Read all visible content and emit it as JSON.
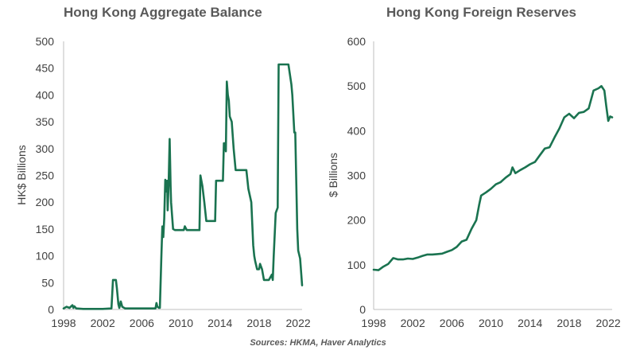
{
  "colors": {
    "line": "#1a7350",
    "axis": "#bfbfbf",
    "text": "#404040",
    "title": "#595959"
  },
  "source": "Sources: HKMA, Haver Analytics",
  "chart_data": [
    {
      "type": "line",
      "title": "Hong Kong Aggregate Balance",
      "ylabel": "HK$ Billions",
      "xlabel": "",
      "xlim": [
        1998,
        2022.4
      ],
      "ylim": [
        0,
        500
      ],
      "x_ticks": [
        "1998",
        "2002",
        "2006",
        "2010",
        "2014",
        "2018",
        "2022"
      ],
      "y_ticks": [
        "0",
        "50",
        "100",
        "150",
        "200",
        "250",
        "300",
        "350",
        "400",
        "450",
        "500"
      ],
      "grid": false,
      "legend": "none",
      "series": [
        {
          "x": [
            1998.0,
            1998.3,
            1998.6,
            1998.9,
            1999.0,
            1999.1,
            1999.3,
            2000.0,
            2001.0,
            2002.0,
            2002.9,
            2003.05,
            2003.1,
            2003.35,
            2003.45,
            2003.6,
            2003.7,
            2003.85,
            2004.0,
            2004.3,
            2005.0,
            2006.0,
            2007.0,
            2007.4,
            2007.5,
            2007.6,
            2007.75,
            2007.85,
            2008.0,
            2008.1,
            2008.2,
            2008.3,
            2008.4,
            2008.5,
            2008.6,
            2008.65,
            2008.75,
            2008.85,
            2008.95,
            2009.0,
            2009.2,
            2009.4,
            2009.6,
            2010.0,
            2010.3,
            2010.4,
            2010.6,
            2011.0,
            2011.5,
            2011.9,
            2012.0,
            2012.2,
            2012.4,
            2012.6,
            2013.0,
            2013.3,
            2013.5,
            2013.6,
            2014.0,
            2014.3,
            2014.4,
            2014.5,
            2014.6,
            2014.7,
            2014.8,
            2014.9,
            2015.0,
            2015.2,
            2015.4,
            2015.6,
            2016.0,
            2016.5,
            2016.7,
            2016.9,
            2017.2,
            2017.4,
            2017.5,
            2017.6,
            2017.8,
            2018.0,
            2018.1,
            2018.3,
            2018.5,
            2019.0,
            2019.3,
            2019.4,
            2019.5,
            2019.7,
            2019.9,
            2020.0,
            2020.1,
            2020.2,
            2020.3,
            2020.5,
            2021.0,
            2021.3,
            2021.4,
            2021.6,
            2021.7,
            2021.9,
            2022.0,
            2022.2,
            2022.4
          ],
          "y": [
            2,
            5,
            3,
            8,
            3,
            6,
            2,
            1,
            1,
            1,
            2,
            55,
            55,
            55,
            40,
            10,
            3,
            15,
            5,
            2,
            2,
            2,
            2,
            2,
            12,
            5,
            3,
            3,
            100,
            155,
            135,
            170,
            242,
            220,
            240,
            185,
            240,
            318,
            230,
            200,
            150,
            148,
            148,
            148,
            148,
            155,
            148,
            148,
            148,
            148,
            250,
            230,
            200,
            165,
            165,
            165,
            165,
            240,
            240,
            240,
            310,
            310,
            295,
            425,
            400,
            390,
            360,
            350,
            300,
            260,
            260,
            260,
            260,
            225,
            200,
            120,
            100,
            90,
            75,
            75,
            85,
            75,
            55,
            55,
            65,
            55,
            100,
            180,
            190,
            457,
            457,
            457,
            457,
            457,
            457,
            420,
            400,
            330,
            330,
            150,
            110,
            95,
            45
          ]
        }
      ]
    },
    {
      "type": "line",
      "title": "Hong Kong Foreign Reserves",
      "ylabel": "$ Billions",
      "xlabel": "",
      "xlim": [
        1998,
        2022.4
      ],
      "ylim": [
        0,
        600
      ],
      "x_ticks": [
        "1998",
        "2002",
        "2006",
        "2010",
        "2014",
        "2018",
        "2022"
      ],
      "y_ticks": [
        "0",
        "100",
        "200",
        "300",
        "400",
        "500",
        "600"
      ],
      "grid": false,
      "legend": "none",
      "series": [
        {
          "x": [
            1998.0,
            1998.5,
            1999.0,
            1999.5,
            2000.0,
            2000.5,
            2001.0,
            2001.5,
            2002.0,
            2002.5,
            2003.0,
            2003.5,
            2004.0,
            2004.5,
            2005.0,
            2005.5,
            2006.0,
            2006.5,
            2007.0,
            2007.5,
            2008.0,
            2008.5,
            2008.8,
            2009.0,
            2009.5,
            2010.0,
            2010.5,
            2011.0,
            2011.5,
            2012.0,
            2012.2,
            2012.5,
            2013.0,
            2013.5,
            2014.0,
            2014.5,
            2015.0,
            2015.5,
            2016.0,
            2016.5,
            2017.0,
            2017.5,
            2018.0,
            2018.5,
            2019.0,
            2019.5,
            2020.0,
            2020.5,
            2021.0,
            2021.3,
            2021.6,
            2021.8,
            2022.0,
            2022.2,
            2022.4
          ],
          "y": [
            89,
            88,
            96,
            102,
            115,
            112,
            112,
            114,
            113,
            116,
            120,
            123,
            123,
            124,
            125,
            129,
            133,
            140,
            152,
            156,
            180,
            200,
            235,
            255,
            262,
            270,
            280,
            285,
            295,
            303,
            318,
            305,
            312,
            318,
            325,
            330,
            345,
            360,
            363,
            385,
            405,
            430,
            438,
            428,
            440,
            442,
            450,
            490,
            495,
            500,
            490,
            455,
            422,
            432,
            430
          ]
        }
      ]
    }
  ]
}
